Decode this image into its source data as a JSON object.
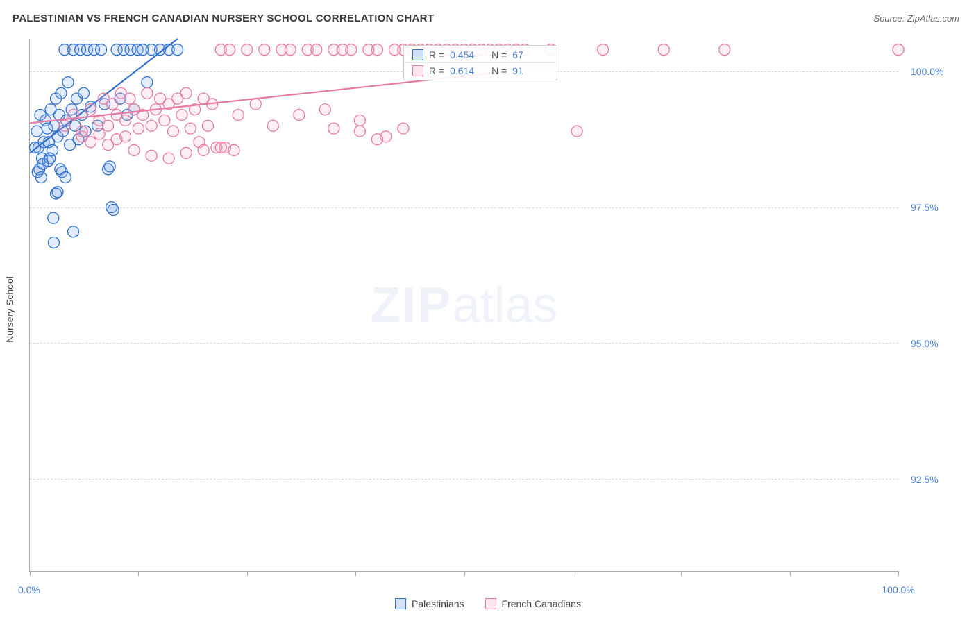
{
  "header": {
    "title": "PALESTINIAN VS FRENCH CANADIAN NURSERY SCHOOL CORRELATION CHART",
    "source": "Source: ZipAtlas.com"
  },
  "chart": {
    "type": "scatter",
    "y_axis_label": "Nursery School",
    "watermark_bold": "ZIP",
    "watermark_light": "atlas",
    "background_color": "#ffffff",
    "grid_color": "#d8d8d8",
    "axis_color": "#aaaaaa",
    "tick_label_color": "#4a7fd6",
    "xlim": [
      0,
      100
    ],
    "ylim": [
      90.8,
      100.6
    ],
    "y_ticks": [
      {
        "value": 100.0,
        "label": "100.0%"
      },
      {
        "value": 97.5,
        "label": "97.5%"
      },
      {
        "value": 95.0,
        "label": "95.0%"
      },
      {
        "value": 92.5,
        "label": "92.5%"
      }
    ],
    "x_major_ticks": [
      0,
      50,
      100
    ],
    "x_minor_ticks": [
      12.5,
      25,
      37.5,
      62.5,
      75,
      87.5
    ],
    "x_tick_labels": [
      {
        "value": 0,
        "label": "0.0%"
      },
      {
        "value": 100,
        "label": "100.0%"
      }
    ],
    "marker_radius": 8,
    "marker_stroke_width": 1.3,
    "marker_fill_opacity": 0.22,
    "trend_line_width": 2.2,
    "series": [
      {
        "id": "palestinians",
        "label": "Palestinians",
        "color_stroke": "#2f6fd0",
        "color_fill": "#7aa8e6",
        "R": "0.454",
        "N": "67",
        "trend": {
          "x1": 0,
          "y1": 98.5,
          "x2": 17,
          "y2": 100.6
        },
        "points": [
          [
            0.6,
            98.6
          ],
          [
            0.8,
            98.9
          ],
          [
            1.0,
            98.6
          ],
          [
            1.2,
            99.2
          ],
          [
            1.4,
            98.4
          ],
          [
            1.6,
            98.7
          ],
          [
            1.8,
            99.1
          ],
          [
            2.0,
            98.95
          ],
          [
            2.2,
            98.7
          ],
          [
            2.4,
            99.3
          ],
          [
            2.6,
            98.55
          ],
          [
            2.8,
            99.0
          ],
          [
            3.0,
            99.5
          ],
          [
            3.2,
            98.8
          ],
          [
            3.4,
            99.2
          ],
          [
            3.6,
            99.6
          ],
          [
            3.8,
            98.9
          ],
          [
            4.0,
            100.4
          ],
          [
            4.2,
            99.1
          ],
          [
            4.4,
            99.8
          ],
          [
            4.6,
            98.65
          ],
          [
            4.8,
            99.3
          ],
          [
            5.0,
            100.4
          ],
          [
            5.2,
            99.0
          ],
          [
            5.4,
            99.5
          ],
          [
            5.6,
            98.75
          ],
          [
            5.8,
            100.4
          ],
          [
            6.0,
            99.2
          ],
          [
            6.2,
            99.6
          ],
          [
            6.4,
            98.9
          ],
          [
            6.6,
            100.4
          ],
          [
            7.0,
            99.35
          ],
          [
            7.4,
            100.4
          ],
          [
            7.8,
            99.0
          ],
          [
            8.2,
            100.4
          ],
          [
            8.6,
            99.4
          ],
          [
            9.0,
            98.2
          ],
          [
            9.2,
            98.25
          ],
          [
            9.4,
            97.5
          ],
          [
            9.6,
            97.45
          ],
          [
            10.0,
            100.4
          ],
          [
            10.4,
            99.5
          ],
          [
            10.8,
            100.4
          ],
          [
            11.2,
            99.2
          ],
          [
            11.6,
            100.4
          ],
          [
            12.0,
            99.3
          ],
          [
            12.4,
            100.4
          ],
          [
            13.0,
            100.4
          ],
          [
            13.5,
            99.8
          ],
          [
            14.0,
            100.4
          ],
          [
            15.0,
            100.4
          ],
          [
            16.0,
            100.4
          ],
          [
            17.0,
            100.4
          ],
          [
            3.5,
            98.2
          ],
          [
            3.7,
            98.15
          ],
          [
            4.1,
            98.05
          ],
          [
            2.1,
            98.35
          ],
          [
            2.3,
            98.4
          ],
          [
            5.0,
            97.05
          ],
          [
            3.0,
            97.75
          ],
          [
            3.2,
            97.78
          ],
          [
            2.7,
            97.3
          ],
          [
            2.75,
            96.85
          ],
          [
            0.9,
            98.15
          ],
          [
            1.1,
            98.2
          ],
          [
            1.3,
            98.05
          ],
          [
            1.5,
            98.3
          ]
        ]
      },
      {
        "id": "french_canadians",
        "label": "French Canadians",
        "color_stroke": "#e67aa0",
        "color_fill": "#f4b4ca",
        "R": "0.614",
        "N": "91",
        "trend": {
          "x1": 0,
          "y1": 99.05,
          "x2": 55,
          "y2": 100.0
        },
        "points": [
          [
            4,
            99.0
          ],
          [
            5,
            99.2
          ],
          [
            6,
            98.9
          ],
          [
            7,
            99.3
          ],
          [
            8,
            99.1
          ],
          [
            8.5,
            99.5
          ],
          [
            9,
            99.0
          ],
          [
            9.5,
            99.4
          ],
          [
            10,
            99.2
          ],
          [
            10.5,
            99.6
          ],
          [
            11,
            99.1
          ],
          [
            11.5,
            99.5
          ],
          [
            12,
            99.3
          ],
          [
            12.5,
            98.95
          ],
          [
            13,
            99.2
          ],
          [
            13.5,
            99.6
          ],
          [
            14,
            99.0
          ],
          [
            14.5,
            99.3
          ],
          [
            15,
            99.5
          ],
          [
            15.5,
            99.1
          ],
          [
            16,
            99.4
          ],
          [
            16.5,
            98.9
          ],
          [
            17,
            99.5
          ],
          [
            17.5,
            99.2
          ],
          [
            18,
            99.6
          ],
          [
            18.5,
            98.95
          ],
          [
            19,
            99.3
          ],
          [
            19.5,
            98.7
          ],
          [
            20,
            99.5
          ],
          [
            20.5,
            99.0
          ],
          [
            21,
            99.4
          ],
          [
            21.5,
            98.6
          ],
          [
            22,
            100.4
          ],
          [
            22.5,
            98.6
          ],
          [
            23,
            100.4
          ],
          [
            23.5,
            98.55
          ],
          [
            24,
            99.2
          ],
          [
            25,
            100.4
          ],
          [
            26,
            99.4
          ],
          [
            27,
            100.4
          ],
          [
            28,
            99.0
          ],
          [
            29,
            100.4
          ],
          [
            30,
            100.4
          ],
          [
            31,
            99.2
          ],
          [
            32,
            100.4
          ],
          [
            33,
            100.4
          ],
          [
            34,
            99.3
          ],
          [
            35,
            100.4
          ],
          [
            36,
            100.4
          ],
          [
            37,
            100.4
          ],
          [
            38,
            99.1
          ],
          [
            39,
            100.4
          ],
          [
            40,
            100.4
          ],
          [
            41,
            98.8
          ],
          [
            42,
            100.4
          ],
          [
            43,
            100.4
          ],
          [
            44,
            100.4
          ],
          [
            45,
            100.4
          ],
          [
            46,
            100.4
          ],
          [
            47,
            100.4
          ],
          [
            48,
            100.4
          ],
          [
            49,
            100.4
          ],
          [
            50,
            100.4
          ],
          [
            51,
            100.4
          ],
          [
            52,
            100.4
          ],
          [
            53,
            100.4
          ],
          [
            54,
            100.4
          ],
          [
            55,
            100.4
          ],
          [
            56,
            100.4
          ],
          [
            57,
            100.4
          ],
          [
            60,
            100.4
          ],
          [
            63,
            98.9
          ],
          [
            66,
            100.4
          ],
          [
            73,
            100.4
          ],
          [
            80,
            100.4
          ],
          [
            100,
            100.4
          ],
          [
            12,
            98.55
          ],
          [
            14,
            98.45
          ],
          [
            16,
            98.4
          ],
          [
            18,
            98.5
          ],
          [
            20,
            98.55
          ],
          [
            22,
            98.6
          ],
          [
            35,
            98.95
          ],
          [
            38,
            98.9
          ],
          [
            40,
            98.75
          ],
          [
            43,
            98.95
          ],
          [
            6,
            98.8
          ],
          [
            7,
            98.7
          ],
          [
            8,
            98.85
          ],
          [
            9,
            98.65
          ],
          [
            10,
            98.75
          ],
          [
            11,
            98.8
          ]
        ]
      }
    ],
    "stats_box": {
      "left_pct": 43,
      "top_pct": 1.2
    },
    "stats_labels": {
      "R": "R =",
      "N": "N ="
    }
  },
  "legend": {
    "items": [
      {
        "series": "palestinians",
        "label": "Palestinians"
      },
      {
        "series": "french_canadians",
        "label": "French Canadians"
      }
    ]
  }
}
